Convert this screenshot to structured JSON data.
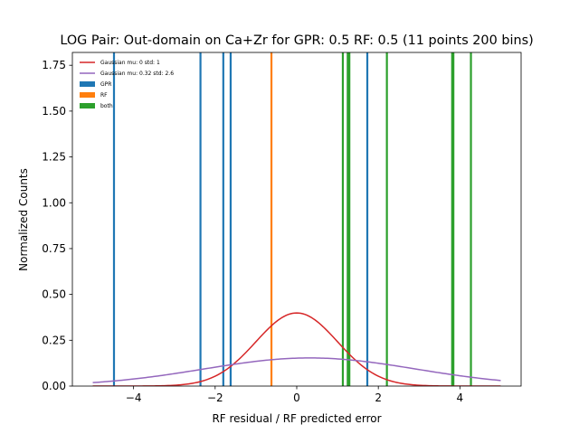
{
  "chart_data": {
    "type": "histogram-line",
    "title": "LOG Pair: Out-domain on Ca+Zr for GPR: 0.5 RF: 0.5 (11 points 200 bins)",
    "xlabel": "RF residual / RF predicted error",
    "ylabel": "Normalized Counts",
    "xlim": [
      -5.5,
      5.5
    ],
    "ylim": [
      0,
      1.82
    ],
    "xticks": [
      -4,
      -2,
      0,
      2,
      4
    ],
    "yticks": [
      0.0,
      0.25,
      0.5,
      0.75,
      1.0,
      1.25,
      1.5,
      1.75
    ],
    "legend_position": "top-left",
    "curves": [
      {
        "name": "Gaussian mu: 0 std: 1",
        "mu": 0,
        "std": 1,
        "x_range": [
          -5,
          5
        ],
        "color": "#d62728"
      },
      {
        "name": "Gaussian mu: 0.32 std: 2.6",
        "mu": 0.32,
        "std": 2.6,
        "x_range": [
          -5,
          5
        ],
        "color": "#9467bd"
      }
    ],
    "bars": [
      {
        "name": "GPR",
        "color": "#1f77b4",
        "x": [
          -4.48,
          -2.36,
          -1.8,
          -1.62,
          1.73
        ],
        "height": 1.82
      },
      {
        "name": "RF",
        "color": "#ff7f0e",
        "x": [
          -0.62
        ],
        "height": 1.82
      },
      {
        "name": "both",
        "color": "#2ca02c",
        "x": [
          1.13,
          1.25,
          1.29,
          2.21,
          3.81,
          3.84,
          4.27
        ],
        "height": 1.82
      }
    ]
  }
}
